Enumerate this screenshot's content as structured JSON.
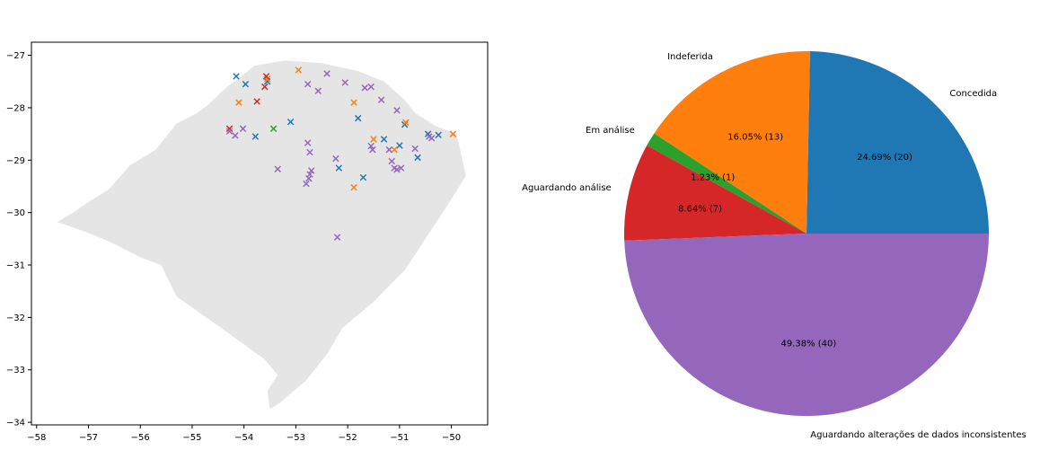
{
  "chart_data": [
    {
      "type": "scatter",
      "title": "",
      "xlabel": "",
      "ylabel": "",
      "xlim": [
        -58.1,
        -49.3
      ],
      "ylim": [
        -34.05,
        -26.75
      ],
      "x_ticks": [
        -58,
        -57,
        -56,
        -55,
        -54,
        -53,
        -52,
        -51,
        -50
      ],
      "y_ticks": [
        -27,
        -28,
        -29,
        -30,
        -31,
        -32,
        -33,
        -34
      ],
      "x_tick_labels": [
        "−58",
        "−57",
        "−56",
        "−55",
        "−54",
        "−53",
        "−52",
        "−51",
        "−50"
      ],
      "y_tick_labels": [
        "−27",
        "−28",
        "−29",
        "−30",
        "−31",
        "−32",
        "−33",
        "−34"
      ],
      "background_region": "Rio Grande do Sul state shape (light gray)",
      "marker": "x",
      "grid": false,
      "series": [
        {
          "color": "#1f77b4",
          "points": [
            [
              -54.15,
              -27.4
            ],
            [
              -53.97,
              -27.55
            ],
            [
              -53.55,
              -27.5
            ],
            [
              -53.78,
              -28.55
            ],
            [
              -53.1,
              -28.27
            ],
            [
              -51.8,
              -28.2
            ],
            [
              -52.17,
              -29.15
            ],
            [
              -51.3,
              -28.6
            ],
            [
              -51.0,
              -28.72
            ],
            [
              -50.9,
              -28.32
            ],
            [
              -50.65,
              -28.95
            ],
            [
              -51.7,
              -29.33
            ],
            [
              -50.25,
              -28.52
            ],
            [
              -50.45,
              -28.5
            ]
          ]
        },
        {
          "color": "#ff7f0e",
          "points": [
            [
              -52.95,
              -27.28
            ],
            [
              -54.1,
              -27.9
            ],
            [
              -53.55,
              -27.45
            ],
            [
              -51.88,
              -27.9
            ],
            [
              -51.5,
              -28.6
            ],
            [
              -51.1,
              -28.8
            ],
            [
              -51.88,
              -29.52
            ],
            [
              -50.88,
              -28.28
            ],
            [
              -49.97,
              -28.5
            ]
          ]
        },
        {
          "color": "#2ca02c",
          "points": [
            [
              -53.43,
              -28.4
            ]
          ]
        },
        {
          "color": "#d62728",
          "points": [
            [
              -53.57,
              -27.4
            ],
            [
              -53.6,
              -27.6
            ],
            [
              -53.75,
              -27.88
            ],
            [
              -54.28,
              -28.4
            ]
          ]
        },
        {
          "color": "#9467bd",
          "points": [
            [
              -52.4,
              -27.35
            ],
            [
              -52.77,
              -27.55
            ],
            [
              -52.57,
              -27.68
            ],
            [
              -52.05,
              -27.52
            ],
            [
              -51.67,
              -27.62
            ],
            [
              -51.55,
              -27.6
            ],
            [
              -51.35,
              -27.85
            ],
            [
              -51.05,
              -28.05
            ],
            [
              -54.28,
              -28.45
            ],
            [
              -54.17,
              -28.53
            ],
            [
              -54.02,
              -28.4
            ],
            [
              -53.35,
              -29.17
            ],
            [
              -52.77,
              -28.67
            ],
            [
              -52.73,
              -28.85
            ],
            [
              -52.23,
              -28.97
            ],
            [
              -52.7,
              -29.2
            ],
            [
              -52.73,
              -29.27
            ],
            [
              -52.75,
              -29.35
            ],
            [
              -52.8,
              -29.45
            ],
            [
              -51.55,
              -28.73
            ],
            [
              -51.52,
              -28.8
            ],
            [
              -51.2,
              -28.8
            ],
            [
              -51.15,
              -29.02
            ],
            [
              -51.1,
              -29.15
            ],
            [
              -51.05,
              -29.18
            ],
            [
              -50.97,
              -29.15
            ],
            [
              -50.7,
              -28.78
            ],
            [
              -50.43,
              -28.55
            ],
            [
              -50.38,
              -28.58
            ],
            [
              -52.2,
              -30.47
            ]
          ]
        }
      ]
    },
    {
      "type": "pie",
      "title": "",
      "start": "right, counter-clockwise",
      "slices": [
        {
          "label": "Concedida",
          "value": 20,
          "percent_label": "24.69%  (20)",
          "color": "#1f77b4"
        },
        {
          "label": "Indeferida",
          "value": 13,
          "percent_label": "16.05%  (13)",
          "color": "#ff7f0e"
        },
        {
          "label": "Em análise",
          "value": 1,
          "percent_label": "1.23%  (1)",
          "color": "#2ca02c"
        },
        {
          "label": "Aguardando análise",
          "value": 7,
          "percent_label": "8.64%  (7)",
          "color": "#d62728"
        },
        {
          "label": "Aguardando alterações de dados inconsistentes",
          "value": 40,
          "percent_label": "49.38%  (40)",
          "color": "#9467bd"
        }
      ]
    }
  ]
}
